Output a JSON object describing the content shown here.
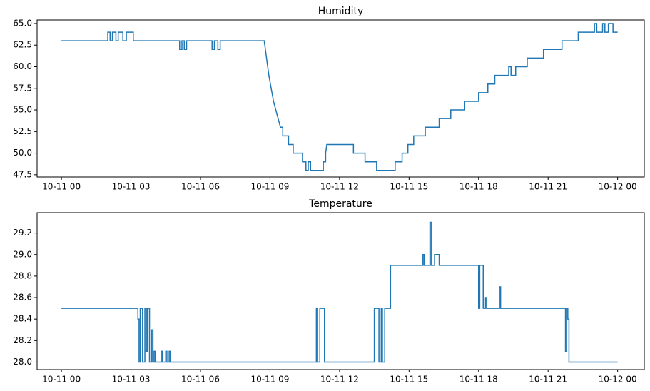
{
  "chart_data": [
    {
      "type": "line",
      "title": "Humidity",
      "color": "#1f77b4",
      "x": [
        0,
        2.0,
        2.0,
        2.1,
        2.1,
        2.2,
        2.2,
        2.35,
        2.35,
        2.45,
        2.45,
        2.65,
        2.65,
        2.8,
        2.8,
        3.1,
        3.1,
        5.1,
        5.1,
        5.2,
        5.2,
        5.3,
        5.3,
        5.4,
        5.4,
        6.5,
        6.5,
        6.6,
        6.6,
        6.75,
        6.75,
        6.85,
        6.85,
        8.75,
        8.85,
        8.95,
        9.05,
        9.15,
        9.25,
        9.35,
        9.45,
        9.55,
        9.55,
        9.8,
        9.8,
        10.0,
        10.0,
        10.4,
        10.4,
        10.55,
        10.55,
        10.65,
        10.65,
        10.75,
        10.75,
        11.3,
        11.3,
        11.4,
        11.4,
        11.45,
        12.6,
        12.6,
        13.1,
        13.1,
        13.6,
        13.6,
        14.4,
        14.4,
        14.7,
        14.7,
        14.95,
        14.95,
        15.2,
        15.2,
        15.7,
        15.7,
        16.3,
        16.3,
        16.8,
        16.8,
        17.4,
        17.4,
        18.0,
        18.0,
        18.4,
        18.4,
        18.7,
        18.7,
        19.3,
        19.3,
        19.4,
        19.4,
        19.6,
        19.6,
        20.1,
        20.1,
        20.8,
        20.8,
        21.6,
        21.6,
        22.3,
        22.3,
        23.0,
        23.0,
        23.1,
        23.1,
        23.35,
        23.35,
        23.45,
        23.45,
        23.6,
        23.6,
        23.8,
        23.8,
        24.0
      ],
      "values": [
        63,
        63,
        64,
        64,
        63,
        63,
        64,
        64,
        63,
        63,
        64,
        64,
        63,
        63,
        64,
        64,
        63,
        63,
        62,
        62,
        63,
        63,
        62,
        62,
        63,
        63,
        62,
        62,
        63,
        63,
        62,
        62,
        63,
        63,
        61,
        59,
        57.5,
        56,
        55,
        54,
        53,
        53,
        52,
        52,
        51,
        51,
        50,
        50,
        49,
        49,
        48,
        48,
        49,
        49,
        48,
        48,
        49,
        49,
        50,
        51,
        51,
        50,
        50,
        49,
        49,
        48,
        48,
        49,
        49,
        50,
        50,
        51,
        51,
        52,
        52,
        53,
        53,
        54,
        54,
        55,
        55,
        56,
        56,
        57,
        57,
        58,
        58,
        59,
        59,
        60,
        60,
        59,
        59,
        60,
        60,
        61,
        61,
        62,
        62,
        63,
        63,
        64,
        64,
        65,
        65,
        64,
        64,
        65,
        65,
        64,
        64,
        65,
        65,
        64,
        64
      ],
      "xlim": [
        -1.05,
        25.15
      ],
      "xticks": [
        {
          "value": 0,
          "label": "10-11 00"
        },
        {
          "value": 3,
          "label": "10-11 03"
        },
        {
          "value": 6,
          "label": "10-11 06"
        },
        {
          "value": 9,
          "label": "10-11 09"
        },
        {
          "value": 12,
          "label": "10-11 12"
        },
        {
          "value": 15,
          "label": "10-11 15"
        },
        {
          "value": 18,
          "label": "10-11 18"
        },
        {
          "value": 21,
          "label": "10-11 21"
        },
        {
          "value": 24,
          "label": "10-12 00"
        }
      ],
      "ylim": [
        47.24,
        65.41
      ],
      "yticks": [
        {
          "value": 47.5,
          "label": "47.5"
        },
        {
          "value": 50,
          "label": "50.0"
        },
        {
          "value": 52.5,
          "label": "52.5"
        },
        {
          "value": 55,
          "label": "55.0"
        },
        {
          "value": 57.5,
          "label": "57.5"
        },
        {
          "value": 60,
          "label": "60.0"
        },
        {
          "value": 62.5,
          "label": "62.5"
        },
        {
          "value": 65,
          "label": "65.0"
        }
      ]
    },
    {
      "type": "line",
      "title": "Temperature",
      "color": "#1f77b4",
      "x": [
        0,
        3.3,
        3.3,
        3.35,
        3.35,
        3.4,
        3.4,
        3.5,
        3.5,
        3.6,
        3.6,
        3.65,
        3.65,
        3.7,
        3.7,
        3.8,
        3.8,
        3.9,
        3.9,
        3.95,
        3.95,
        4.0,
        4.0,
        4.05,
        4.05,
        4.3,
        4.3,
        4.35,
        4.35,
        4.5,
        4.5,
        4.55,
        4.55,
        4.65,
        4.65,
        4.7,
        4.7,
        11.0,
        11.0,
        11.05,
        11.05,
        11.15,
        11.15,
        11.35,
        11.35,
        13.5,
        13.5,
        13.7,
        13.7,
        13.8,
        13.8,
        13.85,
        13.85,
        13.95,
        13.95,
        14.2,
        14.2,
        15.6,
        15.6,
        15.65,
        15.65,
        15.9,
        15.9,
        15.95,
        15.95,
        16.1,
        16.1,
        16.3,
        16.3,
        18.0,
        18.0,
        18.05,
        18.05,
        18.2,
        18.2,
        18.3,
        18.3,
        18.35,
        18.35,
        18.9,
        18.9,
        18.95,
        18.95,
        21.75,
        21.75,
        21.8,
        21.8,
        21.85,
        21.85,
        21.9,
        21.9,
        24.0
      ],
      "values": [
        28.5,
        28.5,
        28.4,
        28.4,
        28.0,
        28.0,
        28.5,
        28.5,
        28.0,
        28.0,
        28.5,
        28.5,
        28.1,
        28.1,
        28.5,
        28.5,
        28.0,
        28.0,
        28.3,
        28.3,
        28.0,
        28.0,
        28.1,
        28.1,
        28.0,
        28.0,
        28.1,
        28.1,
        28.0,
        28.0,
        28.1,
        28.1,
        28.0,
        28.0,
        28.1,
        28.1,
        28.0,
        28.0,
        28.5,
        28.5,
        28.0,
        28.0,
        28.5,
        28.5,
        28.0,
        28.0,
        28.5,
        28.5,
        28.0,
        28.0,
        28.5,
        28.5,
        28.0,
        28.0,
        28.5,
        28.5,
        28.9,
        28.9,
        29.0,
        29.0,
        28.9,
        28.9,
        29.3,
        29.3,
        28.9,
        28.9,
        29.0,
        29.0,
        28.9,
        28.9,
        28.5,
        28.5,
        28.9,
        28.9,
        28.5,
        28.5,
        28.6,
        28.6,
        28.5,
        28.5,
        28.7,
        28.7,
        28.5,
        28.5,
        28.1,
        28.1,
        28.5,
        28.5,
        28.4,
        28.4,
        28.0,
        28.0
      ],
      "xlim": [
        -1.05,
        25.15
      ],
      "xticks": [
        {
          "value": 0,
          "label": "10-11 00"
        },
        {
          "value": 3,
          "label": "10-11 03"
        },
        {
          "value": 6,
          "label": "10-11 06"
        },
        {
          "value": 9,
          "label": "10-11 09"
        },
        {
          "value": 12,
          "label": "10-11 12"
        },
        {
          "value": 15,
          "label": "10-11 15"
        },
        {
          "value": 18,
          "label": "10-11 18"
        },
        {
          "value": 21,
          "label": "10-11 21"
        },
        {
          "value": 24,
          "label": "10-12 00"
        }
      ],
      "ylim": [
        27.93,
        29.39
      ],
      "yticks": [
        {
          "value": 28.0,
          "label": "28.0"
        },
        {
          "value": 28.2,
          "label": "28.2"
        },
        {
          "value": 28.4,
          "label": "28.4"
        },
        {
          "value": 28.6,
          "label": "28.6"
        },
        {
          "value": 28.8,
          "label": "28.8"
        },
        {
          "value": 29.0,
          "label": "29.0"
        },
        {
          "value": 29.2,
          "label": "29.2"
        }
      ]
    }
  ]
}
